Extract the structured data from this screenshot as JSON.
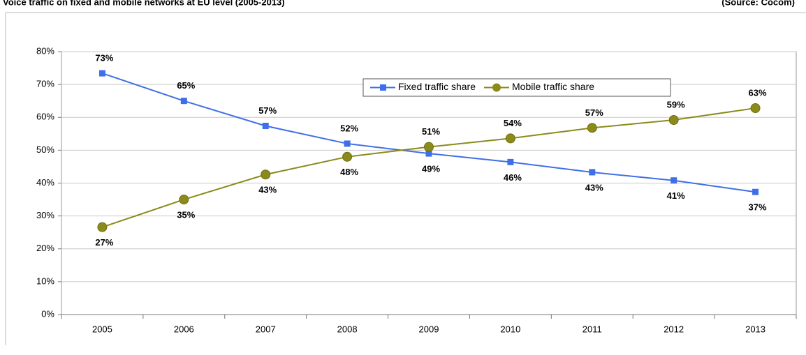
{
  "chart_data": {
    "type": "line",
    "title": "Voice traffic on fixed and mobile networks at EU level (2005-2013)",
    "source": "(Source: Cocom)",
    "categories": [
      "2005",
      "2006",
      "2007",
      "2008",
      "2009",
      "2010",
      "2011",
      "2012",
      "2013"
    ],
    "series": [
      {
        "name": "Fixed traffic share",
        "color": "#3f6fe8",
        "marker": "square",
        "values": [
          73.4,
          65,
          57.4,
          52,
          49,
          46.4,
          43.3,
          40.8,
          37.3
        ],
        "value_labels": [
          "73%",
          "65%",
          "57%",
          "52%",
          "49%",
          "46%",
          "43%",
          "41%",
          "37%"
        ]
      },
      {
        "name": "Mobile traffic share",
        "color": "#8b8a1a",
        "marker": "circle",
        "values": [
          26.6,
          35,
          42.6,
          48,
          51,
          53.6,
          56.8,
          59.2,
          62.8
        ],
        "value_labels": [
          "27%",
          "35%",
          "43%",
          "48%",
          "51%",
          "54%",
          "57%",
          "59%",
          "63%"
        ]
      }
    ],
    "ylim": [
      0,
      80
    ],
    "yticks": [
      {
        "value": 0,
        "label": "0%"
      },
      {
        "value": 10,
        "label": "10%"
      },
      {
        "value": 20,
        "label": "20%"
      },
      {
        "value": 30,
        "label": "30%"
      },
      {
        "value": 40,
        "label": "40%"
      },
      {
        "value": 50,
        "label": "50%"
      },
      {
        "value": 60,
        "label": "60%"
      },
      {
        "value": 70,
        "label": "70%"
      },
      {
        "value": 80,
        "label": "80%"
      }
    ],
    "grid": true,
    "legend": "top"
  }
}
